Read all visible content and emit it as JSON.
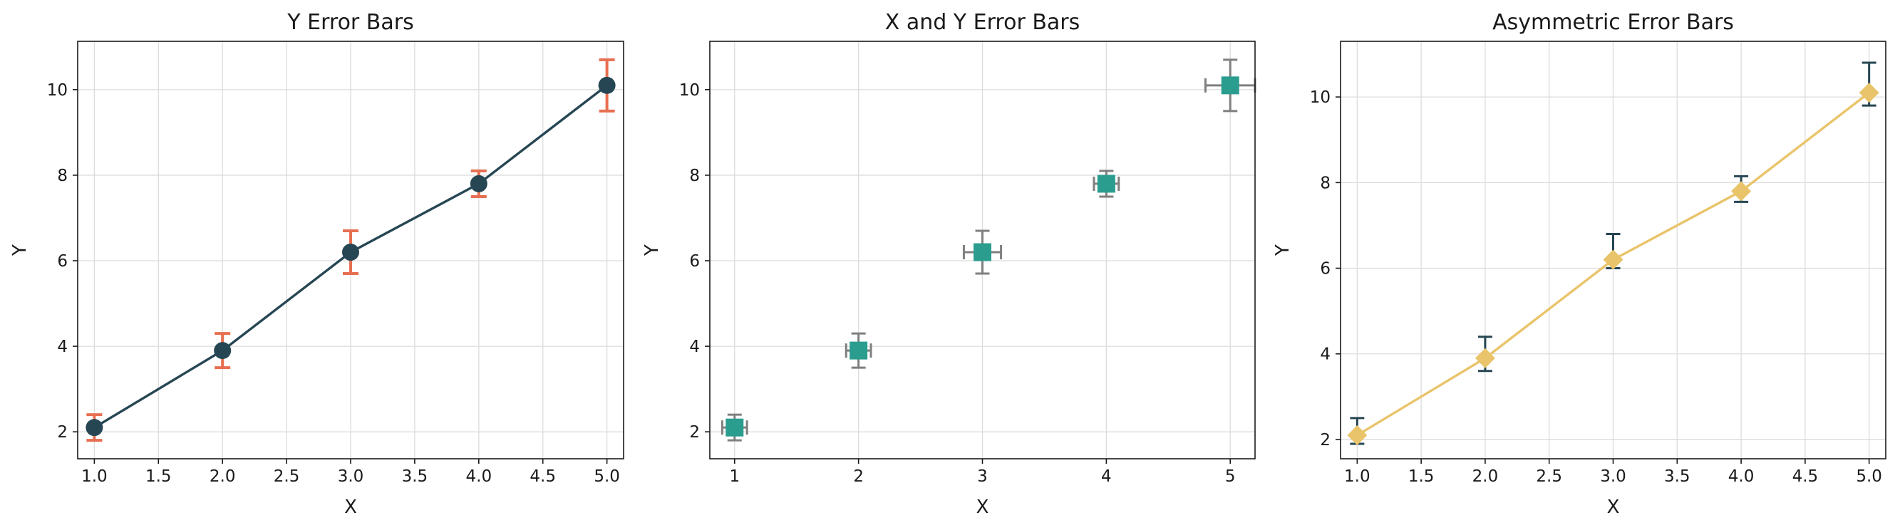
{
  "colors": {
    "background": "#ffffff",
    "gridline": "#dcdcdc",
    "axis": "#1a1a1a"
  },
  "chart_data": [
    {
      "type": "line",
      "title": "Y Error Bars",
      "xlabel": "X",
      "ylabel": "Y",
      "xlim": [
        0.87,
        5.13
      ],
      "ylim": [
        1.37,
        11.13
      ],
      "xticks": [
        1.0,
        1.5,
        2.0,
        2.5,
        3.0,
        3.5,
        4.0,
        4.5,
        5.0
      ],
      "xtick_labels": [
        "1.0",
        "1.5",
        "2.0",
        "2.5",
        "3.0",
        "3.5",
        "4.0",
        "4.5",
        "5.0"
      ],
      "yticks": [
        2,
        4,
        6,
        8,
        10
      ],
      "ytick_labels": [
        "2",
        "4",
        "6",
        "8",
        "10"
      ],
      "grid": true,
      "marker": "circle",
      "line": true,
      "color": "#264653",
      "error_color": "#e76f51",
      "x": [
        1,
        2,
        3,
        4,
        5
      ],
      "y": [
        2.1,
        3.9,
        6.2,
        7.8,
        10.1
      ],
      "yerr_minus": [
        0.3,
        0.4,
        0.5,
        0.3,
        0.6
      ],
      "yerr_plus": [
        0.3,
        0.4,
        0.5,
        0.3,
        0.6
      ]
    },
    {
      "type": "scatter",
      "title": "X and Y Error Bars",
      "xlabel": "X",
      "ylabel": "Y",
      "xlim": [
        0.8,
        5.2
      ],
      "ylim": [
        1.37,
        11.13
      ],
      "xticks": [
        1,
        2,
        3,
        4,
        5
      ],
      "xtick_labels": [
        "1",
        "2",
        "3",
        "4",
        "5"
      ],
      "yticks": [
        2,
        4,
        6,
        8,
        10
      ],
      "ytick_labels": [
        "2",
        "4",
        "6",
        "8",
        "10"
      ],
      "grid": true,
      "marker": "square",
      "line": false,
      "color": "#2a9d8f",
      "error_color": "#7f7f7f",
      "x": [
        1,
        2,
        3,
        4,
        5
      ],
      "y": [
        2.1,
        3.9,
        6.2,
        7.8,
        10.1
      ],
      "xerr": [
        0.1,
        0.1,
        0.15,
        0.1,
        0.2
      ],
      "yerr_minus": [
        0.3,
        0.4,
        0.5,
        0.3,
        0.6
      ],
      "yerr_plus": [
        0.3,
        0.4,
        0.5,
        0.3,
        0.6
      ]
    },
    {
      "type": "line",
      "title": "Asymmetric Error Bars",
      "xlabel": "X",
      "ylabel": "Y",
      "xlim": [
        0.87,
        5.13
      ],
      "ylim": [
        1.55,
        11.3
      ],
      "xticks": [
        1.0,
        1.5,
        2.0,
        2.5,
        3.0,
        3.5,
        4.0,
        4.5,
        5.0
      ],
      "xtick_labels": [
        "1.0",
        "1.5",
        "2.0",
        "2.5",
        "3.0",
        "3.5",
        "4.0",
        "4.5",
        "5.0"
      ],
      "yticks": [
        2,
        4,
        6,
        8,
        10
      ],
      "ytick_labels": [
        "2",
        "4",
        "6",
        "8",
        "10"
      ],
      "grid": true,
      "marker": "diamond",
      "line": true,
      "color": "#e9c46a",
      "error_color": "#264653",
      "x": [
        1,
        2,
        3,
        4,
        5
      ],
      "y": [
        2.1,
        3.9,
        6.2,
        7.8,
        10.1
      ],
      "yerr_minus": [
        0.2,
        0.3,
        0.2,
        0.25,
        0.3
      ],
      "yerr_plus": [
        0.4,
        0.5,
        0.6,
        0.35,
        0.7
      ]
    }
  ]
}
